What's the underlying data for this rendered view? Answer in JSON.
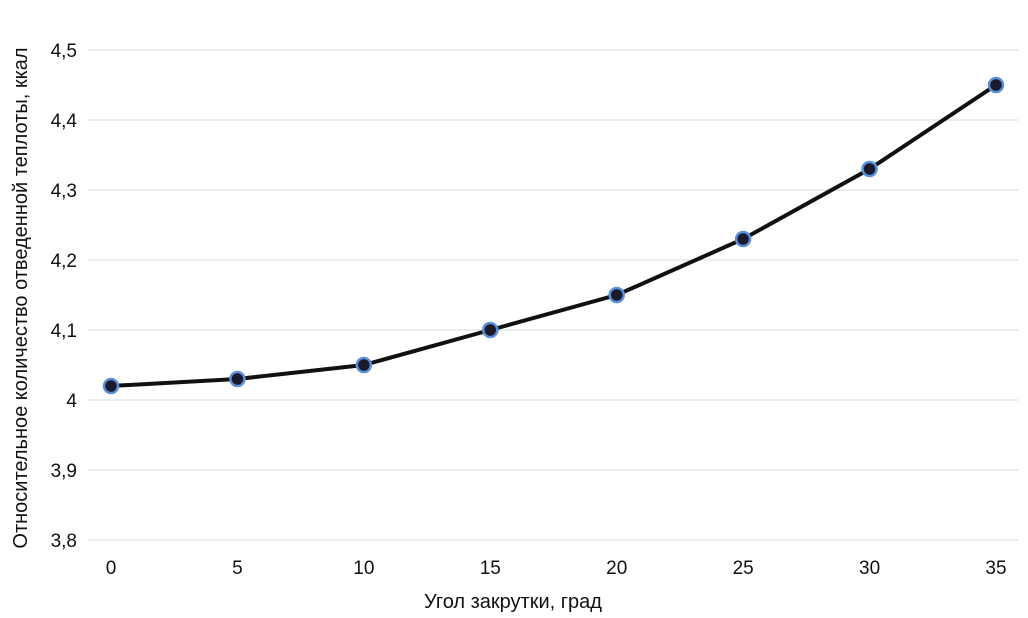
{
  "chart_data": {
    "type": "line",
    "title": "",
    "xlabel": "Угол закрутки, град",
    "ylabel": "Относительное количество отведенной теплоты, ккал",
    "x": [
      0,
      5,
      10,
      15,
      20,
      25,
      30,
      35
    ],
    "series": [
      {
        "values": [
          4.02,
          4.03,
          4.05,
          4.1,
          4.15,
          4.23,
          4.33,
          4.45
        ]
      }
    ],
    "x_ticks": [
      "0",
      "5",
      "10",
      "15",
      "20",
      "25",
      "30",
      "35"
    ],
    "y_ticks": [
      3.8,
      3.9,
      4.0,
      4.1,
      4.2,
      4.3,
      4.4,
      4.5
    ],
    "y_tick_labels": [
      "3,8",
      "3,9",
      "4",
      "4,1",
      "4,2",
      "4,3",
      "4,4",
      "4,5"
    ],
    "ylim": [
      3.8,
      4.5
    ],
    "xlim": [
      0,
      35
    ],
    "grid": "horizontal",
    "legend": "none",
    "colors": {
      "line": "#111111",
      "marker_fill": "#1a1a2a",
      "marker_edge": "#5b8fd9",
      "grid": "#e6e6e6"
    }
  }
}
